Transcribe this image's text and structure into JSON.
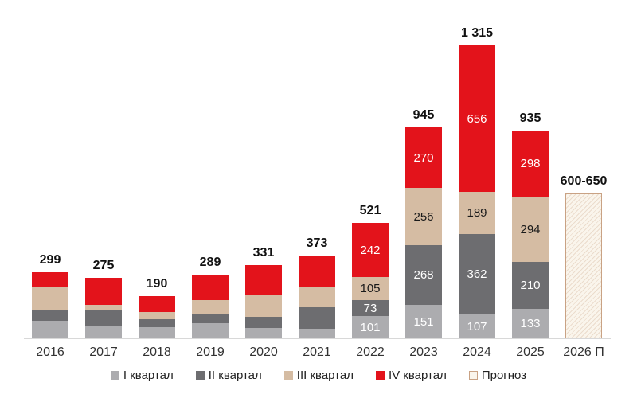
{
  "page": {
    "background": "#ffffff"
  },
  "chart_data": {
    "type": "bar",
    "stacked": true,
    "title": "",
    "xlabel": "",
    "ylabel": "",
    "grid": false,
    "legend_position": "bottom-center",
    "categories": [
      "2016",
      "2017",
      "2018",
      "2019",
      "2020",
      "2021",
      "2022",
      "2023",
      "2024",
      "2025",
      "2026 П"
    ],
    "series": [
      {
        "key": "q1",
        "name": "I квартал",
        "color": "#acacaf",
        "label_color": "#ffffff",
        "values": [
          80,
          55,
          50,
          69,
          48,
          43,
          101,
          151,
          107,
          133,
          null
        ]
      },
      {
        "key": "q2",
        "name": "II квартал",
        "color": "#6d6d70",
        "label_color": "#ffffff",
        "values": [
          47,
          73,
          36,
          40,
          51,
          97,
          73,
          268,
          362,
          210,
          null
        ]
      },
      {
        "key": "q3",
        "name": "III квартал",
        "color": "#d5bca3",
        "label_color": "#1a1a1a",
        "values": [
          104,
          25,
          32,
          65,
          95,
          94,
          105,
          256,
          189,
          294,
          null
        ]
      },
      {
        "key": "q4",
        "name": "IV квартал",
        "color": "#e3131b",
        "label_color": "#ffffff",
        "values": [
          68,
          122,
          72,
          115,
          137,
          139,
          242,
          270,
          656,
          298,
          null
        ]
      }
    ],
    "totals": [
      "299",
      "275",
      "190",
      "289",
      "331",
      "373",
      "521",
      "945",
      "1 315",
      "935",
      "600-650"
    ],
    "segment_labels_shown_for": [
      "2022",
      "2023",
      "2024",
      "2025"
    ],
    "values_estimated_from_pixels_for": [
      "2016",
      "2017",
      "2018",
      "2019",
      "2020",
      "2021"
    ],
    "forecast": {
      "category": "2026 П",
      "total_label": "600-650",
      "render_value": 650,
      "fill": "#faf5ec",
      "border": "#c9a284"
    },
    "legend": [
      {
        "key": "q1",
        "label": "I квартал",
        "color": "#acacaf"
      },
      {
        "key": "q2",
        "label": "II квартал",
        "color": "#6d6d70"
      },
      {
        "key": "q3",
        "label": "III квартал",
        "color": "#d5bca3"
      },
      {
        "key": "q4",
        "label": "IV квартал",
        "color": "#e3131b"
      },
      {
        "key": "forecast",
        "label": "Прогноз",
        "color": "#faf5ec",
        "border": "#c9a284"
      }
    ],
    "axis": {
      "baseline_color": "#d8d8d8",
      "x_tick_labels": [
        "2016",
        "2017",
        "2018",
        "2019",
        "2020",
        "2021",
        "2022",
        "2023",
        "2024",
        "2025",
        "2026 П"
      ]
    }
  }
}
